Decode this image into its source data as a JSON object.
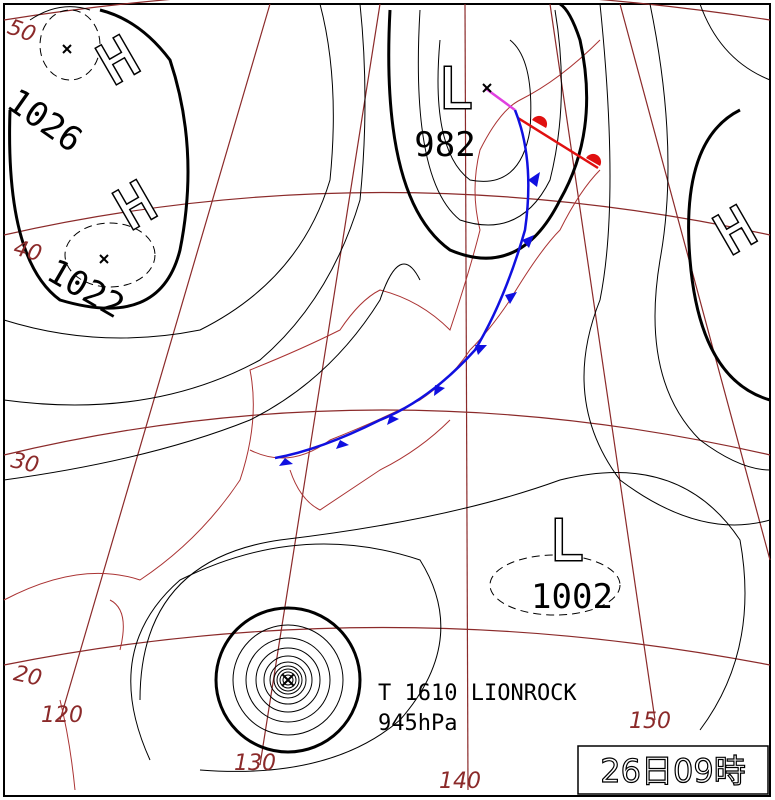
{
  "map": {
    "centers": [
      {
        "symbol": "H",
        "pressure": 1026
      },
      {
        "symbol": "H",
        "pressure": 1022
      },
      {
        "symbol": "L",
        "pressure": 982
      },
      {
        "symbol": "L",
        "pressure": 1002
      },
      {
        "symbol": "H"
      }
    ],
    "latitudes": [
      "50",
      "40",
      "30",
      "20"
    ],
    "longitudes": [
      "120",
      "130",
      "140",
      "150"
    ],
    "typhoon": {
      "name": "T 1610 LIONROCK",
      "pressure": "945hPa"
    },
    "timestamp": "26日09時"
  }
}
